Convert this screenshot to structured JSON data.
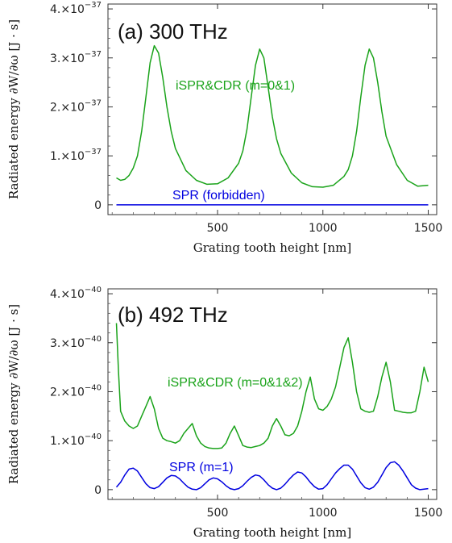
{
  "chart_data": [
    {
      "type": "line",
      "title": "(a) 300 THz",
      "xlabel": "Grating tooth height [nm]",
      "ylabel": "Radiated energy ∂W/∂ω [J · s]",
      "xlim": [
        -20,
        1540
      ],
      "ylim": [
        -2e-38,
        4.1e-37
      ],
      "xticks": [
        {
          "value": 500,
          "label": "500"
        },
        {
          "value": 1000,
          "label": "1000"
        },
        {
          "value": 1500,
          "label": "1500"
        }
      ],
      "yticks": [
        {
          "value": 0,
          "mantissa": "0",
          "exp": ""
        },
        {
          "value": 1e-37,
          "mantissa": "1.×10",
          "exp": "−37"
        },
        {
          "value": 2e-37,
          "mantissa": "2.×10",
          "exp": "−37"
        },
        {
          "value": 3e-37,
          "mantissa": "3.×10",
          "exp": "−37"
        },
        {
          "value": 4e-37,
          "mantissa": "4.×10",
          "exp": "−37"
        }
      ],
      "series": [
        {
          "name": "iSPR&CDR (m=0&1)",
          "color": "#1aa31a",
          "x": [
            20,
            40,
            60,
            80,
            100,
            120,
            140,
            160,
            180,
            200,
            220,
            240,
            260,
            280,
            300,
            350,
            400,
            450,
            500,
            550,
            600,
            620,
            640,
            660,
            680,
            700,
            720,
            740,
            760,
            780,
            800,
            850,
            900,
            950,
            1000,
            1050,
            1100,
            1120,
            1140,
            1160,
            1180,
            1200,
            1220,
            1240,
            1260,
            1280,
            1300,
            1350,
            1400,
            1450,
            1500
          ],
          "y": [
            5.5e-38,
            5e-38,
            5.2e-38,
            6e-38,
            7.5e-38,
            1e-37,
            1.5e-37,
            2.2e-37,
            2.9e-37,
            3.25e-37,
            3.1e-37,
            2.6e-37,
            2e-37,
            1.5e-37,
            1.15e-37,
            7e-38,
            5e-38,
            4.2e-38,
            4.3e-38,
            5.5e-38,
            8.5e-38,
            1.1e-37,
            1.55e-37,
            2.2e-37,
            2.85e-37,
            3.18e-37,
            3e-37,
            2.4e-37,
            1.8e-37,
            1.35e-37,
            1.05e-37,
            6.5e-38,
            4.5e-38,
            3.7e-38,
            3.6e-38,
            4e-38,
            5.8e-38,
            7.2e-38,
            1e-37,
            1.5e-37,
            2.2e-37,
            2.85e-37,
            3.18e-37,
            3e-37,
            2.5e-37,
            1.9e-37,
            1.4e-37,
            8.2e-38,
            5e-38,
            3.8e-38,
            4e-38
          ]
        },
        {
          "name": "SPR (forbidden)",
          "color": "#0000e0",
          "x": [
            20,
            1500
          ],
          "y": [
            0,
            0
          ]
        }
      ],
      "grid": false
    },
    {
      "type": "line",
      "title": "(b) 492 THz",
      "xlabel": "Grating tooth height [nm]",
      "ylabel": "Radiated energy ∂W/∂ω [J · s]",
      "xlim": [
        -20,
        1540
      ],
      "ylim": [
        -2e-41,
        4.1e-40
      ],
      "xticks": [
        {
          "value": 500,
          "label": "500"
        },
        {
          "value": 1000,
          "label": "1000"
        },
        {
          "value": 1500,
          "label": "1500"
        }
      ],
      "yticks": [
        {
          "value": 0,
          "mantissa": "0",
          "exp": ""
        },
        {
          "value": 1e-40,
          "mantissa": "1.×10",
          "exp": "−40"
        },
        {
          "value": 2e-40,
          "mantissa": "2.×10",
          "exp": "−40"
        },
        {
          "value": 3e-40,
          "mantissa": "3.×10",
          "exp": "−40"
        },
        {
          "value": 4e-40,
          "mantissa": "4.×10",
          "exp": "−40"
        }
      ],
      "series": [
        {
          "name": "iSPR&CDR (m=0&1&2)",
          "color": "#1aa31a",
          "x": [
            20,
            30,
            40,
            60,
            80,
            100,
            120,
            140,
            160,
            180,
            200,
            220,
            240,
            260,
            280,
            300,
            320,
            340,
            360,
            380,
            400,
            420,
            440,
            460,
            480,
            500,
            520,
            540,
            560,
            580,
            600,
            620,
            640,
            660,
            680,
            700,
            720,
            740,
            760,
            780,
            800,
            820,
            840,
            860,
            880,
            900,
            920,
            940,
            960,
            980,
            1000,
            1020,
            1040,
            1060,
            1080,
            1100,
            1120,
            1140,
            1160,
            1180,
            1200,
            1220,
            1240,
            1260,
            1280,
            1300,
            1320,
            1340,
            1360,
            1380,
            1400,
            1420,
            1440,
            1460,
            1480,
            1500
          ],
          "y": [
            3.4e-40,
            2.4e-40,
            1.6e-40,
            1.4e-40,
            1.3e-40,
            1.25e-40,
            1.3e-40,
            1.5e-40,
            1.7e-40,
            1.9e-40,
            1.65e-40,
            1.25e-40,
            1.05e-40,
            1e-40,
            9.8e-41,
            9.5e-41,
            1e-40,
            1.15e-40,
            1.25e-40,
            1.35e-40,
            1.1e-40,
            9.5e-41,
            8.8e-41,
            8.5e-41,
            8.4e-41,
            8.4e-41,
            8.5e-41,
            9.5e-41,
            1.15e-40,
            1.3e-40,
            1.1e-40,
            9e-41,
            8.7e-41,
            8.6e-41,
            8.8e-41,
            9e-41,
            9.5e-41,
            1.05e-40,
            1.3e-40,
            1.45e-40,
            1.3e-40,
            1.12e-40,
            1.1e-40,
            1.15e-40,
            1.3e-40,
            1.6e-40,
            2e-40,
            2.3e-40,
            1.85e-40,
            1.65e-40,
            1.62e-40,
            1.7e-40,
            1.85e-40,
            2.1e-40,
            2.5e-40,
            2.9e-40,
            3.1e-40,
            2.6e-40,
            2e-40,
            1.65e-40,
            1.6e-40,
            1.58e-40,
            1.6e-40,
            1.9e-40,
            2.3e-40,
            2.6e-40,
            2.2e-40,
            1.62e-40,
            1.6e-40,
            1.58e-40,
            1.57e-40,
            1.57e-40,
            1.6e-40,
            2e-40,
            2.5e-40,
            2.2e-40
          ]
        },
        {
          "name": "SPR (m=1)",
          "color": "#0000e0",
          "x": [
            20,
            40,
            60,
            80,
            100,
            120,
            140,
            160,
            180,
            200,
            220,
            240,
            260,
            280,
            300,
            320,
            340,
            360,
            380,
            400,
            420,
            440,
            460,
            480,
            500,
            520,
            540,
            560,
            580,
            600,
            620,
            640,
            660,
            680,
            700,
            720,
            740,
            760,
            780,
            800,
            820,
            840,
            860,
            880,
            900,
            920,
            940,
            960,
            980,
            1000,
            1020,
            1040,
            1060,
            1080,
            1100,
            1120,
            1140,
            1160,
            1180,
            1200,
            1220,
            1240,
            1260,
            1280,
            1300,
            1320,
            1340,
            1360,
            1380,
            1400,
            1420,
            1440,
            1460,
            1480,
            1500
          ],
          "y": [
            5e-42,
            1.5e-41,
            3e-41,
            4.2e-41,
            4.4e-41,
            3.8e-41,
            2.5e-41,
            1.2e-41,
            4e-42,
            2e-42,
            6e-42,
            1.5e-41,
            2.4e-41,
            2.9e-41,
            2.8e-41,
            2.2e-41,
            1.3e-41,
            5e-42,
            1e-42,
            0.0,
            4e-42,
            1.2e-41,
            2e-41,
            2.4e-41,
            2.2e-41,
            1.6e-41,
            8e-42,
            2e-42,
            0.0,
            2e-42,
            8e-42,
            1.7e-41,
            2.5e-41,
            3e-41,
            2.8e-41,
            2e-41,
            1e-41,
            3e-42,
            0.0,
            3e-42,
            1.1e-41,
            2.1e-41,
            3e-41,
            3.6e-41,
            3.4e-41,
            2.6e-41,
            1.5e-41,
            6e-42,
            1e-42,
            2e-42,
            1e-41,
            2.2e-41,
            3.4e-41,
            4.3e-41,
            5e-41,
            5e-41,
            4.2e-41,
            2.8e-41,
            1.4e-41,
            4e-42,
            1e-42,
            5e-42,
            1.5e-41,
            3e-41,
            4.5e-41,
            5.5e-41,
            5.7e-41,
            5e-41,
            3.8e-41,
            2.4e-41,
            1e-41,
            3e-42,
            0.0,
            1e-42,
            2e-42
          ]
        }
      ],
      "grid": false
    }
  ]
}
